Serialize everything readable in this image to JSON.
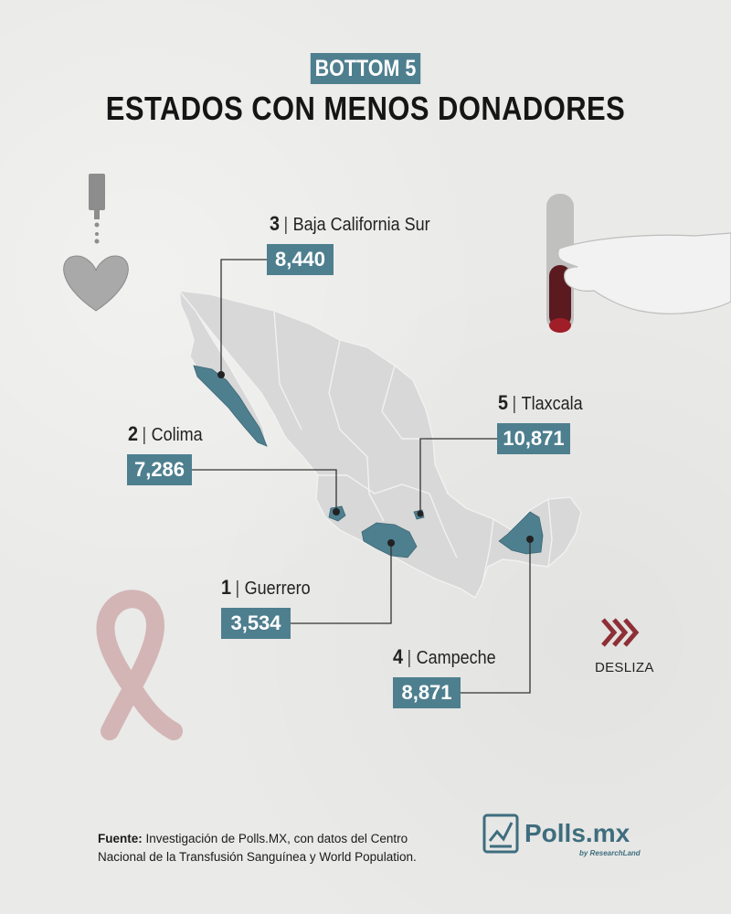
{
  "header": {
    "badge": "BOTTOM 5",
    "title": "ESTADOS CON MENOS DONADORES"
  },
  "states": [
    {
      "rank": "1",
      "name": "Guerrero",
      "value": "3,534"
    },
    {
      "rank": "2",
      "name": "Colima",
      "value": "7,286"
    },
    {
      "rank": "3",
      "name": "Baja California Sur",
      "value": "8,440"
    },
    {
      "rank": "4",
      "name": "Campeche",
      "value": "8,871"
    },
    {
      "rank": "5",
      "name": "Tlaxcala",
      "value": "10,871"
    }
  ],
  "nav": {
    "swipe_label": "DESLIZA"
  },
  "footer": {
    "source_label": "Fuente:",
    "source_text": "Investigación de Polls.MX, con datos del Centro Nacional de la Transfusión Sanguínea y World Population.",
    "logo": "Polls.mx",
    "logo_sub": "by ResearchLand"
  },
  "colors": {
    "accent": "#4e7f8f",
    "map_land": "#d8d8d8",
    "highlight": "#4e7f8f",
    "arrow": "#8e2f36",
    "background": "#eaeae8"
  }
}
